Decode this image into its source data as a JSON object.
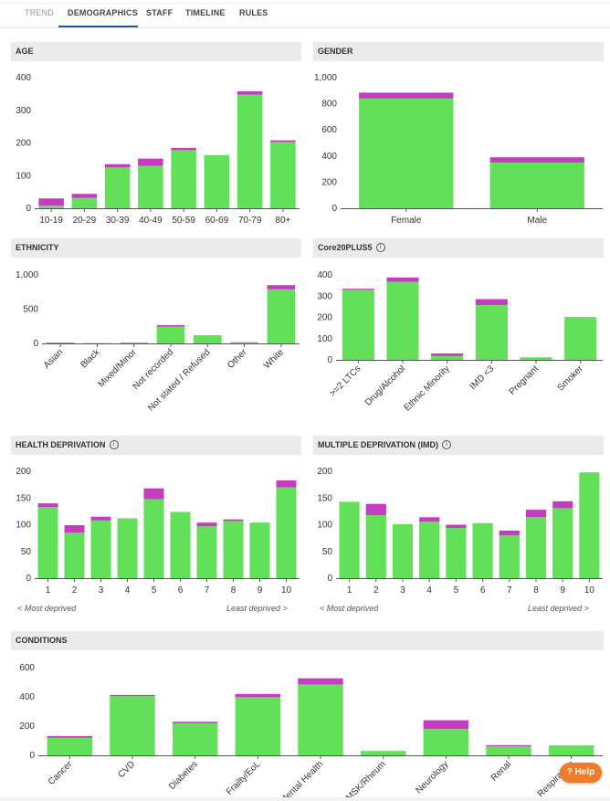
{
  "tabs": [
    {
      "label": "TREND",
      "active": false
    },
    {
      "label": "DEMOGRAPHICS",
      "active": true
    },
    {
      "label": "STAFF",
      "active": false
    },
    {
      "label": "TIMELINE",
      "active": false
    },
    {
      "label": "RULES",
      "active": false
    }
  ],
  "colors": {
    "green": "#63e05a",
    "magenta": "#c53cc0",
    "axis": "#555555"
  },
  "help_label": "? Help",
  "info_icon_glyph": "i",
  "notes": {
    "health_most": "< Most deprived",
    "health_least": "Least deprived >",
    "imd_most": "< Most deprived",
    "imd_least": "Least deprived >"
  },
  "chart_data": [
    {
      "id": "age",
      "title": "AGE",
      "type": "bar",
      "stacked": true,
      "categories": [
        "10-19",
        "20-29",
        "30-39",
        "40-49",
        "50-59",
        "60-69",
        "70-79",
        "80+"
      ],
      "series": [
        {
          "name": "green",
          "values": [
            8,
            32,
            125,
            130,
            178,
            163,
            348,
            203
          ]
        },
        {
          "name": "magenta",
          "values": [
            22,
            12,
            10,
            22,
            7,
            0,
            10,
            5
          ]
        }
      ],
      "yticks": [
        0,
        100,
        200,
        300,
        400
      ],
      "ylim": [
        0,
        400
      ]
    },
    {
      "id": "gender",
      "title": "GENDER",
      "type": "bar",
      "stacked": true,
      "categories": [
        "Female",
        "Male"
      ],
      "series": [
        {
          "name": "green",
          "values": [
            840,
            350
          ]
        },
        {
          "name": "magenta",
          "values": [
            45,
            40
          ]
        }
      ],
      "yticks": [
        "0",
        "200",
        "400",
        "600",
        "800",
        "1,000"
      ],
      "ylim": [
        0,
        1000
      ]
    },
    {
      "id": "ethnicity",
      "title": "ETHNICITY",
      "type": "bar",
      "stacked": true,
      "categories": [
        "Asian",
        "Black",
        "Mixed/Minor",
        "Not recorded",
        "Not stated / Refused",
        "Other",
        "White"
      ],
      "series": [
        {
          "name": "green",
          "values": [
            5,
            3,
            12,
            245,
            120,
            18,
            790
          ]
        },
        {
          "name": "magenta",
          "values": [
            8,
            2,
            2,
            22,
            0,
            2,
            60
          ]
        }
      ],
      "yticks": [
        "0",
        "500",
        "1,000"
      ],
      "ylim": [
        0,
        1000
      ]
    },
    {
      "id": "core20",
      "title": "Core20PLUS5",
      "info": true,
      "type": "bar",
      "stacked": true,
      "categories": [
        ">=2 LTCs",
        "Drug/Alcohol",
        "Ethnic Minority",
        "IMD <3",
        "Pregnant",
        "Smoker"
      ],
      "series": [
        {
          "name": "green",
          "values": [
            330,
            368,
            18,
            258,
            12,
            202
          ]
        },
        {
          "name": "magenta",
          "values": [
            5,
            20,
            12,
            28,
            0,
            0
          ]
        }
      ],
      "yticks": [
        0,
        100,
        200,
        300,
        400
      ],
      "ylim": [
        0,
        400
      ]
    },
    {
      "id": "health",
      "title": "HEALTH DEPRIVATION",
      "info": true,
      "type": "bar",
      "stacked": true,
      "categories": [
        "1",
        "2",
        "3",
        "4",
        "5",
        "6",
        "7",
        "8",
        "9",
        "10"
      ],
      "series": [
        {
          "name": "green",
          "values": [
            133,
            85,
            108,
            112,
            148,
            124,
            97,
            107,
            104,
            170
          ]
        },
        {
          "name": "magenta",
          "values": [
            7,
            14,
            7,
            0,
            20,
            0,
            7,
            3,
            0,
            13
          ]
        }
      ],
      "yticks": [
        0,
        50,
        100,
        150,
        200
      ],
      "ylim": [
        0,
        200
      ]
    },
    {
      "id": "imd",
      "title": "MULTIPLE DEPRIVATION (IMD)",
      "info": true,
      "type": "bar",
      "stacked": true,
      "categories": [
        "1",
        "2",
        "3",
        "4",
        "5",
        "6",
        "7",
        "8",
        "9",
        "10"
      ],
      "series": [
        {
          "name": "green",
          "values": [
            143,
            118,
            101,
            106,
            94,
            103,
            80,
            114,
            131,
            198
          ]
        },
        {
          "name": "magenta",
          "values": [
            0,
            21,
            0,
            8,
            6,
            0,
            9,
            14,
            13,
            0
          ]
        }
      ],
      "yticks": [
        0,
        50,
        100,
        150,
        200
      ],
      "ylim": [
        0,
        200
      ]
    },
    {
      "id": "conditions",
      "title": "CONDITIONS",
      "type": "bar",
      "stacked": true,
      "categories": [
        "Cancer",
        "CVD",
        "Diabetes",
        "Frailty/EoL",
        "Mental Health",
        "MSK/Rheum",
        "Neurology",
        "Renal",
        "Respiratory"
      ],
      "series": [
        {
          "name": "green",
          "values": [
            120,
            405,
            220,
            398,
            485,
            30,
            180,
            62,
            68
          ]
        },
        {
          "name": "magenta",
          "values": [
            12,
            8,
            10,
            22,
            42,
            0,
            60,
            8,
            0
          ]
        }
      ],
      "yticks": [
        0,
        200,
        400,
        600
      ],
      "ylim": [
        0,
        600
      ]
    }
  ]
}
